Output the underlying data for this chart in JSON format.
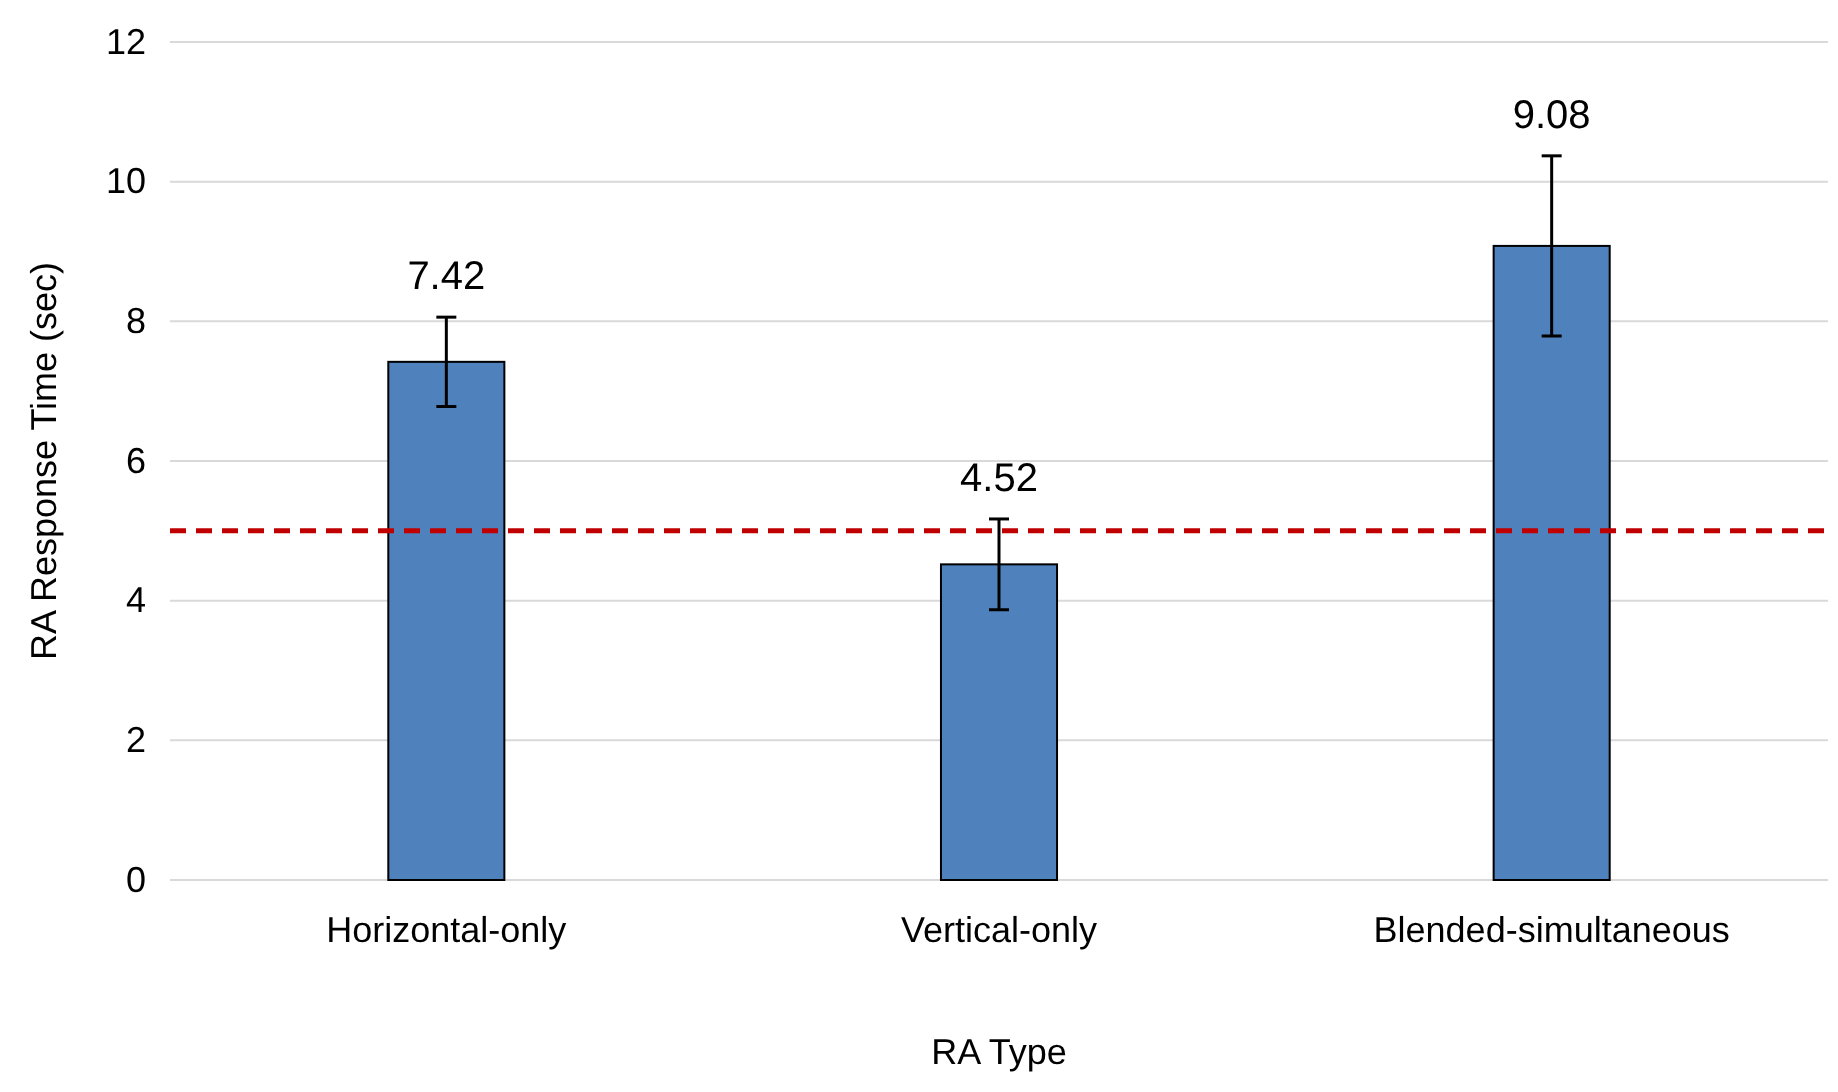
{
  "chart_data": {
    "type": "bar",
    "xlabel": "RA Type",
    "ylabel": "RA Response Time (sec)",
    "categories": [
      "Horizontal-only",
      "Vertical-only",
      "Blended-simultaneous"
    ],
    "values": [
      7.42,
      4.52,
      9.08
    ],
    "color": "#4f81bd",
    "errors": [
      0.64,
      0.65,
      1.29
    ],
    "data_labels": true,
    "ylim": [
      0,
      12
    ],
    "yticks": [
      0,
      2,
      4,
      6,
      8,
      10,
      12
    ],
    "grid": "y",
    "ref_lines": [
      {
        "axis": "y",
        "value": 5,
        "color": "#c00000",
        "line_style": "dashed"
      }
    ]
  }
}
